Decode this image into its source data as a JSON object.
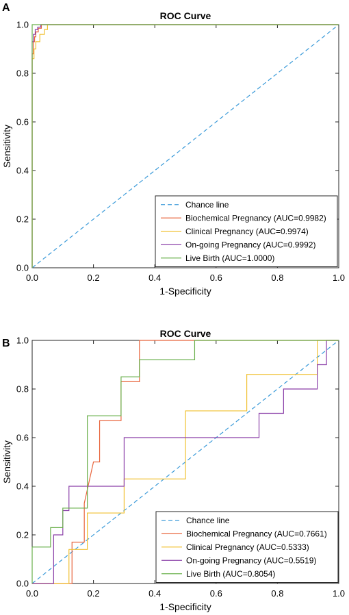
{
  "chart_data": [
    {
      "panel": "A",
      "type": "line",
      "title": "ROC Curve",
      "xlabel": "1-Specificity",
      "ylabel": "Sensitivity",
      "xlim": [
        0,
        1
      ],
      "ylim": [
        0,
        1
      ],
      "xticks": [
        "0.0",
        "0.2",
        "0.4",
        "0.6",
        "0.8",
        "1.0"
      ],
      "yticks": [
        "0.0",
        "0.2",
        "0.4",
        "0.6",
        "0.8",
        "1.0"
      ],
      "grid": false,
      "legend_position": "bottom-right",
      "series": [
        {
          "name": "Chance line",
          "color": "#3a9ad9",
          "dashed": true,
          "x": [
            0,
            1
          ],
          "y": [
            0,
            1
          ]
        },
        {
          "name": "Biochemical Pregnancy (AUC=0.9982)",
          "color": "#e8643c",
          "dashed": false,
          "x": [
            0,
            0,
            0.004,
            0.004,
            0.008,
            0.008,
            0.012,
            0.012,
            0.02,
            0.02,
            0.03,
            0.03,
            1.0
          ],
          "y": [
            0,
            0.88,
            0.88,
            0.93,
            0.93,
            0.95,
            0.95,
            0.97,
            0.97,
            0.985,
            0.985,
            1.0,
            1.0
          ]
        },
        {
          "name": "Clinical Pregnancy (AUC=0.9974)",
          "color": "#f0c030",
          "dashed": false,
          "x": [
            0,
            0,
            0.006,
            0.006,
            0.012,
            0.012,
            0.025,
            0.025,
            0.04,
            0.04,
            0.05,
            0.05,
            1.0
          ],
          "y": [
            0,
            0.86,
            0.86,
            0.9,
            0.9,
            0.93,
            0.93,
            0.96,
            0.96,
            0.98,
            0.98,
            1.0,
            1.0
          ]
        },
        {
          "name": "On-going Pregnancy (AUC=0.9992)",
          "color": "#8a3fa8",
          "dashed": false,
          "x": [
            0,
            0,
            0.004,
            0.004,
            0.01,
            0.01,
            0.018,
            0.018,
            0.028,
            0.028,
            1.0
          ],
          "y": [
            0,
            0.93,
            0.93,
            0.96,
            0.96,
            0.98,
            0.98,
            0.99,
            0.99,
            1.0,
            1.0
          ]
        },
        {
          "name": "Live Birth (AUC=1.0000)",
          "color": "#6ab04c",
          "dashed": false,
          "x": [
            0,
            0,
            1.0
          ],
          "y": [
            0,
            1.0,
            1.0
          ]
        }
      ]
    },
    {
      "panel": "B",
      "type": "line",
      "title": "ROC Curve",
      "xlabel": "1-Specificity",
      "ylabel": "Sensitivity",
      "xlim": [
        0,
        1
      ],
      "ylim": [
        0,
        1
      ],
      "xticks": [
        "0.0",
        "0.2",
        "0.4",
        "0.6",
        "0.8",
        "1.0"
      ],
      "yticks": [
        "0.0",
        "0.2",
        "0.4",
        "0.6",
        "0.8",
        "1.0"
      ],
      "grid": false,
      "legend_position": "bottom-right",
      "series": [
        {
          "name": "Chance line",
          "color": "#3a9ad9",
          "dashed": true,
          "x": [
            0,
            1
          ],
          "y": [
            0,
            1
          ]
        },
        {
          "name": "Biochemical Pregnancy (AUC=0.7661)",
          "color": "#e8643c",
          "dashed": false,
          "x": [
            0,
            0.13,
            0.13,
            0.17,
            0.17,
            0.2,
            0.22,
            0.22,
            0.29,
            0.29,
            0.35,
            0.35,
            0.53,
            0.53,
            1.0
          ],
          "y": [
            0,
            0,
            0.17,
            0.17,
            0.33,
            0.5,
            0.5,
            0.67,
            0.67,
            0.83,
            0.83,
            1.0,
            1.0,
            1.0,
            1.0
          ]
        },
        {
          "name": "Clinical Pregnancy (AUC=0.5333)",
          "color": "#f0c030",
          "dashed": false,
          "x": [
            0,
            0.12,
            0.12,
            0.18,
            0.18,
            0.3,
            0.3,
            0.5,
            0.5,
            0.7,
            0.7,
            0.93,
            0.93,
            1.0
          ],
          "y": [
            0,
            0,
            0.14,
            0.14,
            0.29,
            0.29,
            0.43,
            0.43,
            0.71,
            0.71,
            0.86,
            0.86,
            1.0,
            1.0
          ]
        },
        {
          "name": "On-going Pregnancy (AUC=0.5519)",
          "color": "#8a3fa8",
          "dashed": false,
          "x": [
            0,
            0.07,
            0.07,
            0.1,
            0.1,
            0.12,
            0.12,
            0.3,
            0.3,
            0.74,
            0.74,
            0.82,
            0.82,
            0.93,
            0.93,
            0.96,
            0.96,
            1.0
          ],
          "y": [
            0,
            0,
            0.2,
            0.2,
            0.3,
            0.3,
            0.4,
            0.4,
            0.6,
            0.6,
            0.7,
            0.7,
            0.8,
            0.8,
            0.9,
            0.9,
            1.0,
            1.0
          ]
        },
        {
          "name": "Live Birth (AUC=0.8054)",
          "color": "#6ab04c",
          "dashed": false,
          "x": [
            0,
            0,
            0.06,
            0.06,
            0.1,
            0.1,
            0.12,
            0.12,
            0.18,
            0.18,
            0.29,
            0.29,
            0.35,
            0.35,
            0.53,
            0.53,
            1.0
          ],
          "y": [
            0,
            0.15,
            0.15,
            0.23,
            0.23,
            0.31,
            0.31,
            0.31,
            0.31,
            0.69,
            0.69,
            0.85,
            0.85,
            0.92,
            0.92,
            1.0,
            1.0
          ]
        }
      ]
    }
  ]
}
